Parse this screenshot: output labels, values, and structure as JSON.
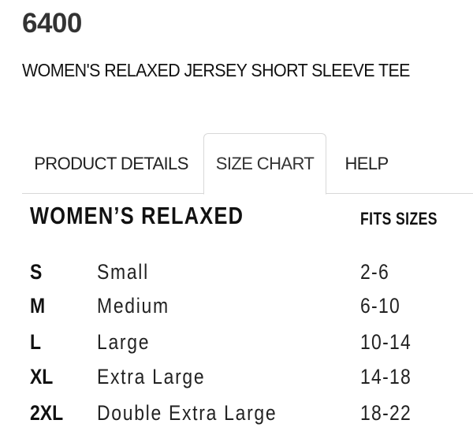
{
  "product": {
    "style_number": "6400",
    "title": "WOMEN'S RELAXED JERSEY SHORT SLEEVE TEE"
  },
  "tabs": [
    {
      "label": "PRODUCT DETAILS",
      "active": false
    },
    {
      "label": "SIZE CHART",
      "active": true
    },
    {
      "label": "HELP",
      "active": false
    }
  ],
  "size_chart": {
    "heading": "WOMEN’S RELAXED",
    "fits_heading": "FITS SIZES",
    "rows": [
      {
        "code": "S",
        "name": "Small",
        "fits": "2-6"
      },
      {
        "code": "M",
        "name": "Medium",
        "fits": "6-10"
      },
      {
        "code": "L",
        "name": "Large",
        "fits": "10-14"
      },
      {
        "code": "XL",
        "name": "Extra Large",
        "fits": "14-18"
      },
      {
        "code": "2XL",
        "name": "Double Extra Large",
        "fits": "18-22"
      }
    ]
  }
}
